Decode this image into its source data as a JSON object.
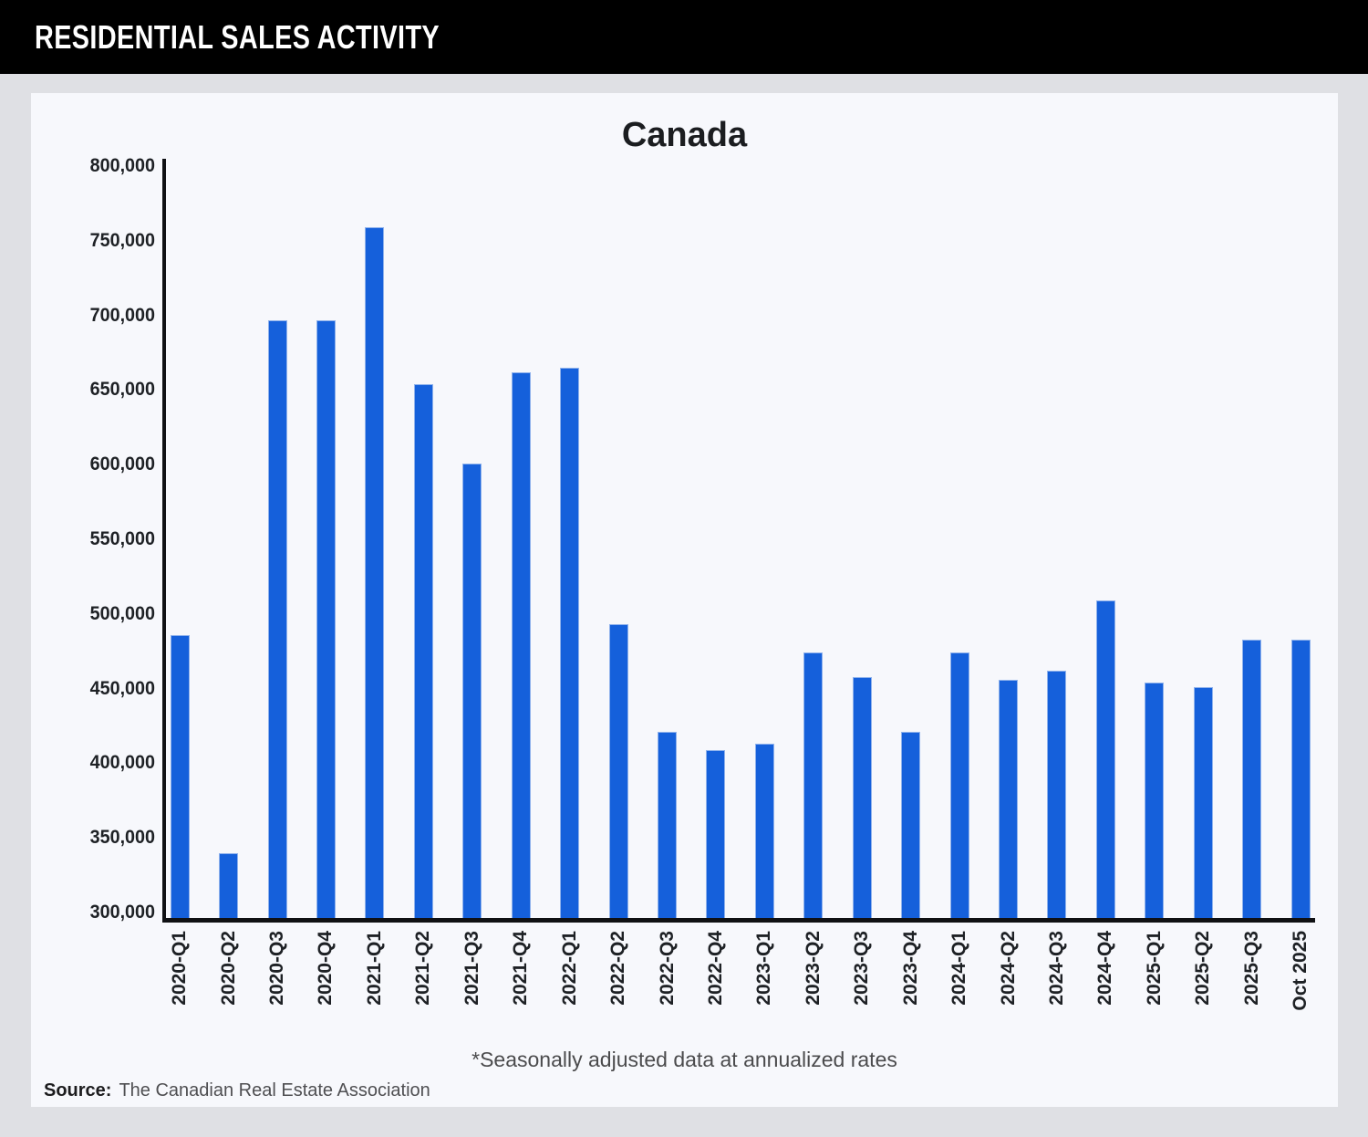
{
  "header": {
    "title": "RESIDENTIAL SALES ACTIVITY"
  },
  "chart_data": {
    "type": "bar",
    "title": "Canada",
    "categories": [
      "2020-Q1",
      "2020-Q2",
      "2020-Q3",
      "2020-Q4",
      "2021-Q1",
      "2021-Q2",
      "2021-Q3",
      "2021-Q4",
      "2022-Q1",
      "2022-Q2",
      "2022-Q3",
      "2022-Q4",
      "2023-Q1",
      "2023-Q2",
      "2023-Q3",
      "2023-Q4",
      "2024-Q1",
      "2024-Q2",
      "2024-Q3",
      "2024-Q4",
      "2025-Q1",
      "2025-Q2",
      "2025-Q3",
      "Oct 2025"
    ],
    "values": [
      486000,
      340000,
      697000,
      697000,
      759000,
      654000,
      601000,
      662000,
      665000,
      493000,
      421000,
      409000,
      413000,
      474000,
      458000,
      421000,
      474000,
      456000,
      462000,
      509000,
      454000,
      451000,
      483000,
      483000
    ],
    "xlabel": "",
    "ylabel": "",
    "ylim": [
      300000,
      800000
    ],
    "ytick_step": 50000,
    "ytick_labels": [
      "800,000",
      "750,000",
      "700,000",
      "650,000",
      "600,000",
      "550,000",
      "500,000",
      "450,000",
      "400,000",
      "350,000",
      "300,000"
    ],
    "grid": false,
    "legend": "none",
    "bar_color": "#1560db",
    "bar_edge_color": "#8fb2ec"
  },
  "footnote": "*Seasonally adjusted data at annualized rates",
  "source": {
    "label": "Source:",
    "text": "The Canadian Real Estate Association"
  }
}
